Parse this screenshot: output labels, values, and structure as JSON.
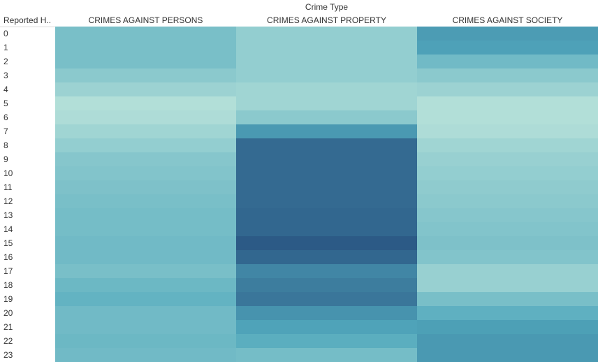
{
  "chart_data": {
    "type": "heatmap",
    "title": "Crime Type",
    "row_header": "Reported H..",
    "columns": [
      "CRIMES AGAINST PERSONS",
      "CRIMES AGAINST PROPERTY",
      "CRIMES AGAINST SOCIETY"
    ],
    "rows": [
      "0",
      "1",
      "2",
      "3",
      "4",
      "5",
      "6",
      "7",
      "8",
      "9",
      "10",
      "11",
      "12",
      "13",
      "14",
      "15",
      "16",
      "17",
      "18",
      "19",
      "20",
      "21",
      "22",
      "23"
    ],
    "values": [
      [
        0.32,
        0.2,
        0.58
      ],
      [
        0.32,
        0.2,
        0.55
      ],
      [
        0.32,
        0.2,
        0.36
      ],
      [
        0.24,
        0.2,
        0.24
      ],
      [
        0.16,
        0.14,
        0.16
      ],
      [
        0.06,
        0.14,
        0.06
      ],
      [
        0.08,
        0.24,
        0.06
      ],
      [
        0.14,
        0.6,
        0.08
      ],
      [
        0.2,
        0.9,
        0.14
      ],
      [
        0.26,
        0.9,
        0.18
      ],
      [
        0.28,
        0.9,
        0.2
      ],
      [
        0.3,
        0.9,
        0.22
      ],
      [
        0.32,
        0.9,
        0.24
      ],
      [
        0.34,
        0.92,
        0.26
      ],
      [
        0.34,
        0.92,
        0.28
      ],
      [
        0.36,
        1.0,
        0.3
      ],
      [
        0.36,
        0.92,
        0.28
      ],
      [
        0.32,
        0.72,
        0.18
      ],
      [
        0.38,
        0.78,
        0.18
      ],
      [
        0.42,
        0.82,
        0.32
      ],
      [
        0.36,
        0.64,
        0.44
      ],
      [
        0.36,
        0.54,
        0.56
      ],
      [
        0.38,
        0.46,
        0.6
      ],
      [
        0.36,
        0.34,
        0.6
      ]
    ],
    "value_scale": "relative intensity 0-1",
    "color_low": "#bfe6dc",
    "color_mid": "#52a9bd",
    "color_high": "#2c5a86",
    "grid": false,
    "legend": "none"
  }
}
